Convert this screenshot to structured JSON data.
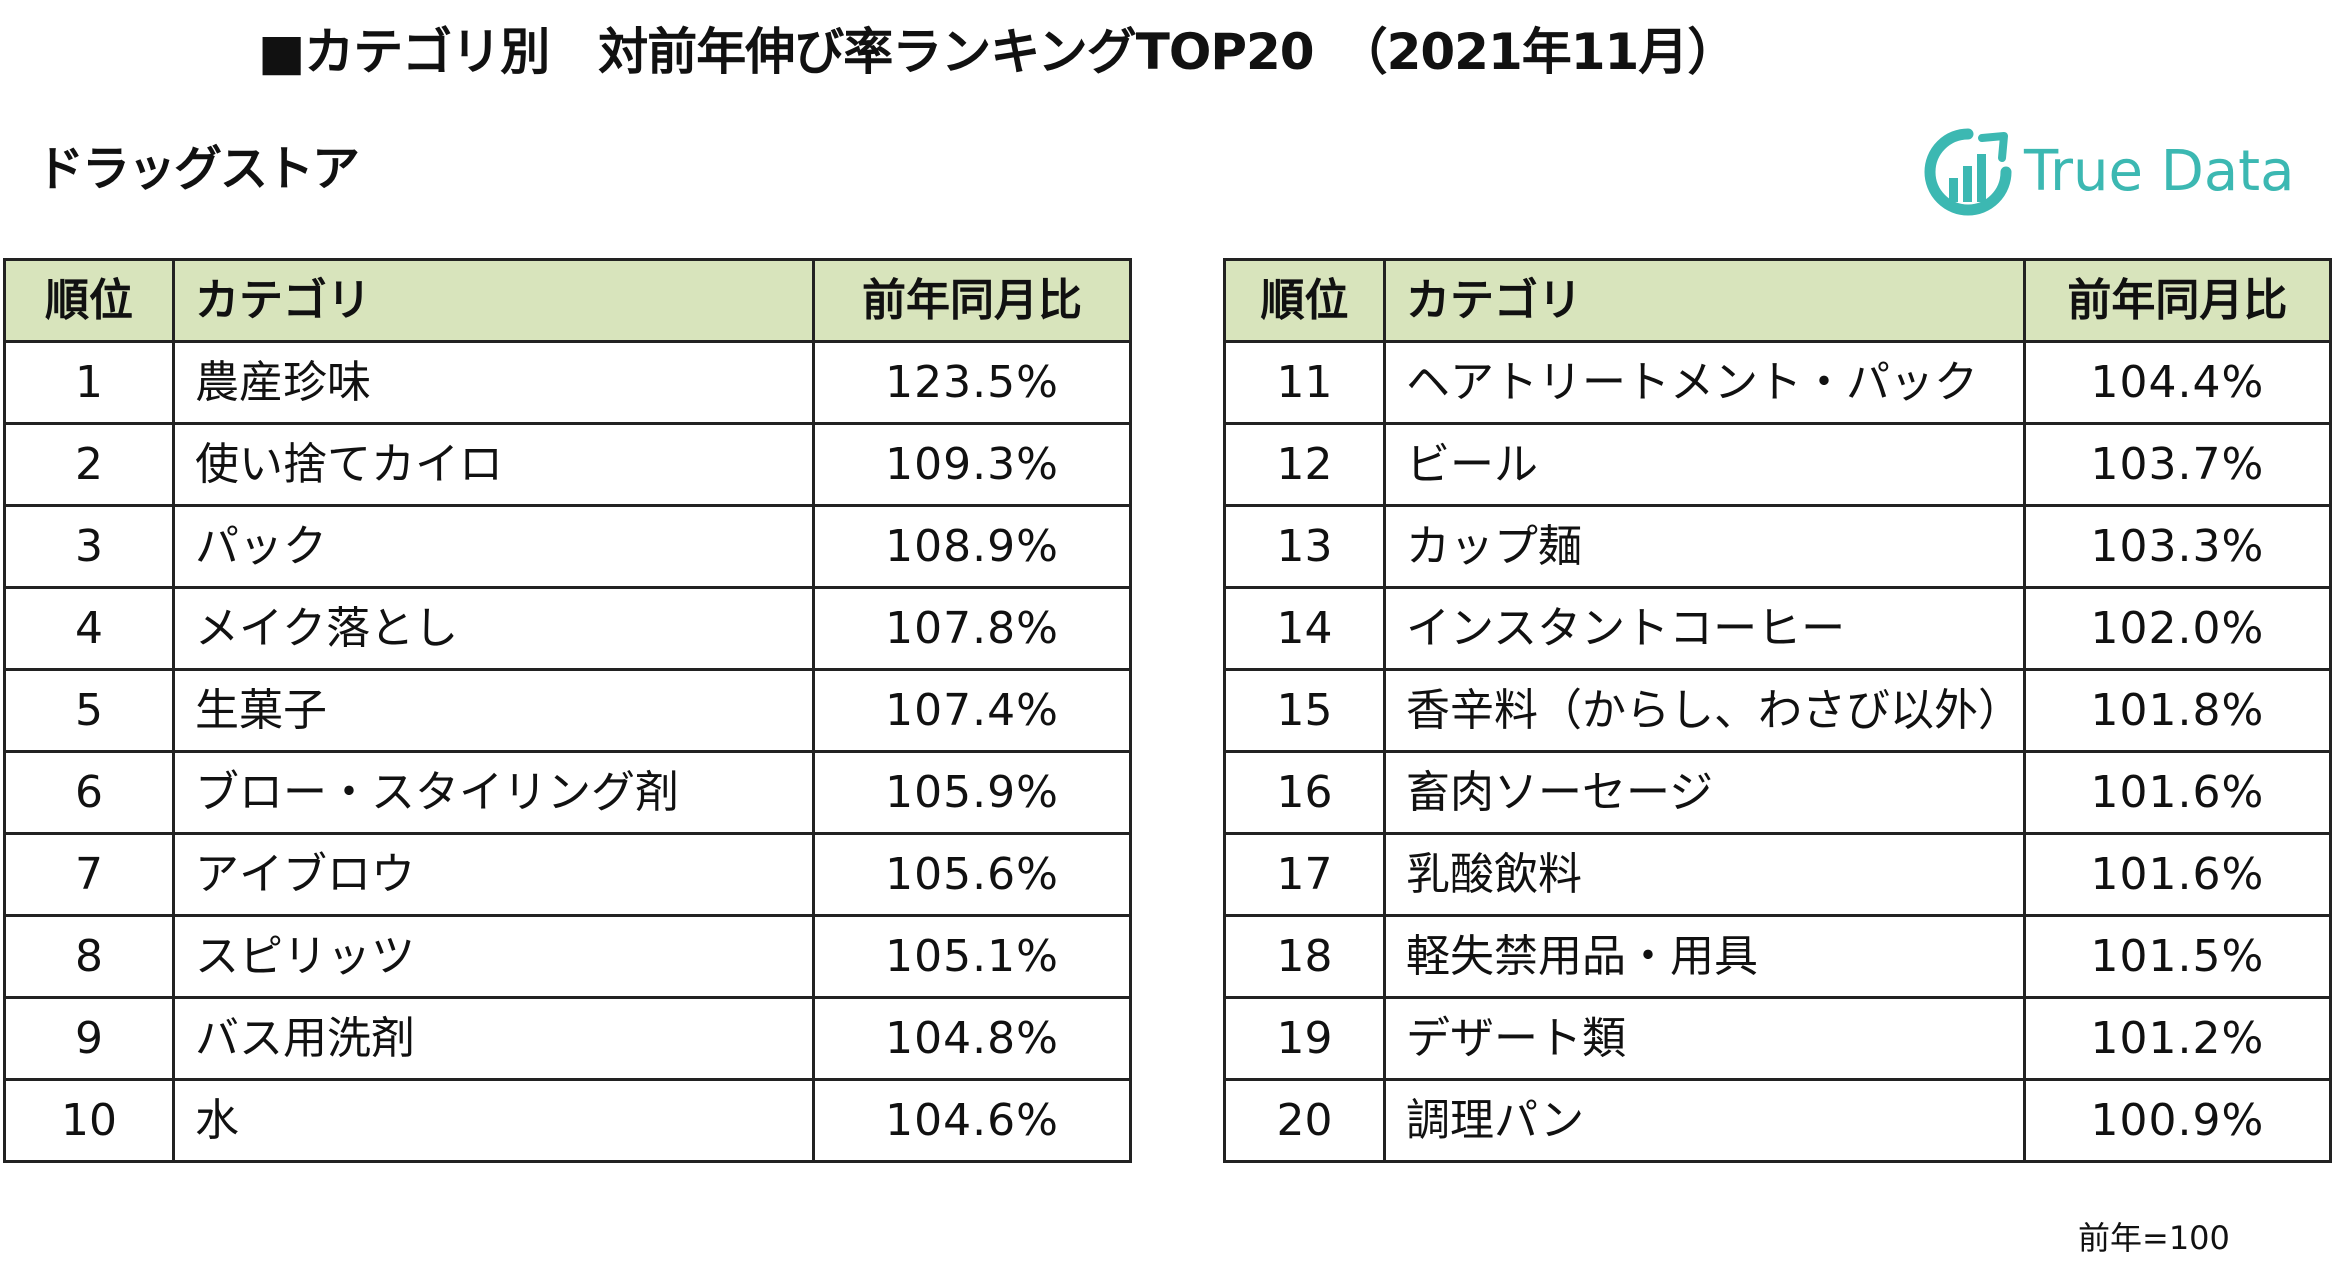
{
  "header": {
    "title": "■カテゴリ別　対前年伸び率ランキングTOP20　（2021年11月）",
    "subtitle": "ドラッグストア"
  },
  "logo": {
    "brand": "True Data",
    "color": "#3cb8b2"
  },
  "table_headers": {
    "rank": "順位",
    "category": "カテゴリ",
    "ratio": "前年同月比"
  },
  "left_rows": [
    {
      "rank": "1",
      "category": "農産珍味",
      "ratio": "123.5%"
    },
    {
      "rank": "2",
      "category": "使い捨てカイロ",
      "ratio": "109.3%"
    },
    {
      "rank": "3",
      "category": "パック",
      "ratio": "108.9%"
    },
    {
      "rank": "4",
      "category": "メイク落とし",
      "ratio": "107.8%"
    },
    {
      "rank": "5",
      "category": "生菓子",
      "ratio": "107.4%"
    },
    {
      "rank": "6",
      "category": "ブロー・スタイリング剤",
      "ratio": "105.9%"
    },
    {
      "rank": "7",
      "category": "アイブロウ",
      "ratio": "105.6%"
    },
    {
      "rank": "8",
      "category": "スピリッツ",
      "ratio": "105.1%"
    },
    {
      "rank": "9",
      "category": "バス用洗剤",
      "ratio": "104.8%"
    },
    {
      "rank": "10",
      "category": "水",
      "ratio": "104.6%"
    }
  ],
  "right_rows": [
    {
      "rank": "11",
      "category": "ヘアトリートメント・パック",
      "ratio": "104.4%"
    },
    {
      "rank": "12",
      "category": "ビール",
      "ratio": "103.7%"
    },
    {
      "rank": "13",
      "category": "カップ麺",
      "ratio": "103.3%"
    },
    {
      "rank": "14",
      "category": "インスタントコーヒー",
      "ratio": "102.0%"
    },
    {
      "rank": "15",
      "category": "香辛料（からし、わさび以外）",
      "ratio": "101.8%"
    },
    {
      "rank": "16",
      "category": "畜肉ソーセージ",
      "ratio": "101.6%"
    },
    {
      "rank": "17",
      "category": "乳酸飲料",
      "ratio": "101.6%"
    },
    {
      "rank": "18",
      "category": "軽失禁用品・用具",
      "ratio": "101.5%"
    },
    {
      "rank": "19",
      "category": "デザート類",
      "ratio": "101.2%"
    },
    {
      "rank": "20",
      "category": "調理パン",
      "ratio": "100.9%"
    }
  ],
  "footnote": "前年=100",
  "colors": {
    "header_bg": "#d8e4bc",
    "border": "#222222"
  }
}
